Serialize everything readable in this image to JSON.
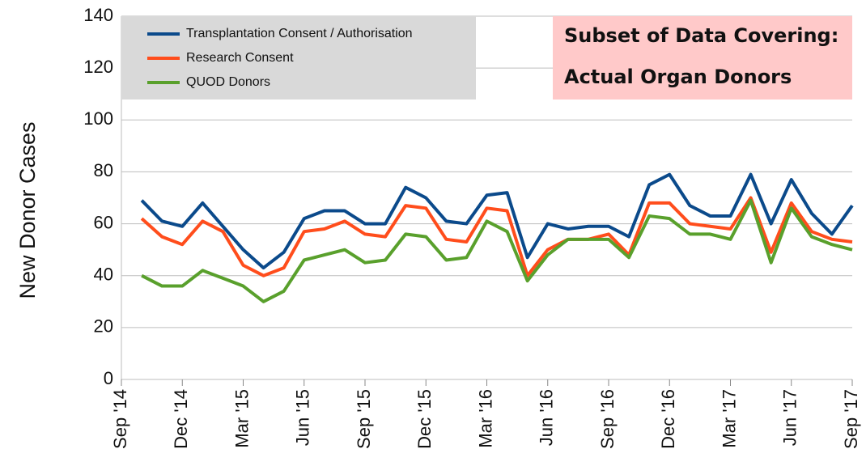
{
  "chart_data": {
    "type": "line",
    "y_label": "New Donor Cases",
    "annotation": [
      "Subset of Data Covering:",
      "Actual Organ Donors"
    ],
    "categories": [
      "Sep '14",
      null,
      null,
      "Dec '14",
      null,
      null,
      "Mar '15",
      null,
      null,
      "Jun '15",
      null,
      null,
      "Sep '15",
      null,
      null,
      "Dec '15",
      null,
      null,
      "Mar '16",
      null,
      null,
      "Jun '16",
      null,
      null,
      "Sep '16",
      null,
      null,
      "Dec '16",
      null,
      null,
      "Mar '17",
      null,
      null,
      "Jun '17",
      null,
      null,
      "Sep '17"
    ],
    "series": [
      {
        "name": "Transplantation Consent / Authorisation",
        "color": "#0b4a8b",
        "values": [
          null,
          69,
          61,
          59,
          68,
          59,
          50,
          43,
          49,
          62,
          65,
          65,
          60,
          60,
          74,
          70,
          61,
          60,
          71,
          72,
          47,
          60,
          58,
          59,
          59,
          55,
          75,
          79,
          67,
          63,
          63,
          79,
          60,
          77,
          64,
          56,
          67
        ]
      },
      {
        "name": "Research Consent",
        "color": "#ff4d1c",
        "values": [
          null,
          62,
          55,
          52,
          61,
          57,
          44,
          40,
          43,
          57,
          58,
          61,
          56,
          55,
          67,
          66,
          54,
          53,
          66,
          65,
          40,
          50,
          54,
          54,
          56,
          48,
          68,
          68,
          60,
          59,
          58,
          70,
          49,
          68,
          57,
          54,
          53
        ]
      },
      {
        "name": "QUOD Donors",
        "color": "#59a02c",
        "values": [
          null,
          40,
          36,
          36,
          42,
          39,
          36,
          30,
          34,
          46,
          48,
          50,
          45,
          46,
          56,
          55,
          46,
          47,
          61,
          57,
          38,
          48,
          54,
          54,
          54,
          47,
          63,
          62,
          56,
          56,
          54,
          69,
          45,
          66,
          55,
          52,
          50
        ]
      }
    ],
    "ylim": [
      0,
      140
    ],
    "yticks": [
      0,
      20,
      40,
      60,
      80,
      100,
      120,
      140
    ],
    "grid": true
  }
}
